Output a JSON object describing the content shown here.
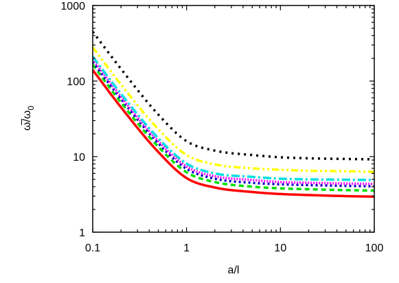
{
  "chart_data": {
    "type": "line",
    "xscale": "log",
    "yscale": "log",
    "xlim": [
      0.1,
      100
    ],
    "ylim": [
      1,
      1000
    ],
    "xlabel": "a/l",
    "ylabel": "ω̅/ω0",
    "ylabel_parts": {
      "main": "ω̅/ω",
      "sub": "0"
    },
    "xticks": [
      {
        "value": 0.1,
        "label": "0.1"
      },
      {
        "value": 1,
        "label": "1"
      },
      {
        "value": 10,
        "label": "10"
      },
      {
        "value": 100,
        "label": "100"
      }
    ],
    "yticks": [
      {
        "value": 1,
        "label": "1"
      },
      {
        "value": 10,
        "label": "10"
      },
      {
        "value": 100,
        "label": "100"
      },
      {
        "value": 1000,
        "label": "1000"
      }
    ],
    "grid": false,
    "x": [
      0.1,
      0.2,
      0.5,
      1,
      2,
      5,
      10,
      20,
      50,
      100
    ],
    "series": [
      {
        "color": "#ff0000",
        "dash": "solid",
        "width": 3.5,
        "values": [
          140,
          45,
          11.5,
          5.2,
          3.9,
          3.4,
          3.2,
          3.1,
          3.0,
          2.95
        ]
      },
      {
        "color": "#00e000",
        "dash": "7,5",
        "width": 3.5,
        "values": [
          165,
          52,
          13.5,
          6.2,
          4.6,
          4.0,
          3.8,
          3.7,
          3.6,
          3.55
        ]
      },
      {
        "color": "#0000c0",
        "dash": "3,4",
        "width": 3.5,
        "values": [
          180,
          58,
          15,
          6.9,
          5.1,
          4.5,
          4.3,
          4.2,
          4.1,
          4.05
        ]
      },
      {
        "color": "#ff00ff",
        "dash": "2,2",
        "width": 3.5,
        "values": [
          195,
          62,
          16,
          7.4,
          5.5,
          4.9,
          4.6,
          4.5,
          4.4,
          4.35
        ]
      },
      {
        "color": "#00e0e0",
        "dash": "12,4,3,4",
        "width": 3.5,
        "values": [
          210,
          68,
          17.5,
          8.1,
          6.0,
          5.4,
          5.1,
          5.0,
          4.95,
          4.9
        ]
      },
      {
        "color": "#ffff00",
        "dash": "10,4,3,4,3,4",
        "width": 3.5,
        "values": [
          280,
          90,
          23,
          10.5,
          7.9,
          7.0,
          6.7,
          6.5,
          6.4,
          6.3
        ]
      },
      {
        "color": "#000000",
        "dash": "3,6",
        "width": 3.5,
        "values": [
          450,
          145,
          36,
          16,
          12,
          10.5,
          9.8,
          9.5,
          9.3,
          9.2
        ]
      }
    ]
  }
}
